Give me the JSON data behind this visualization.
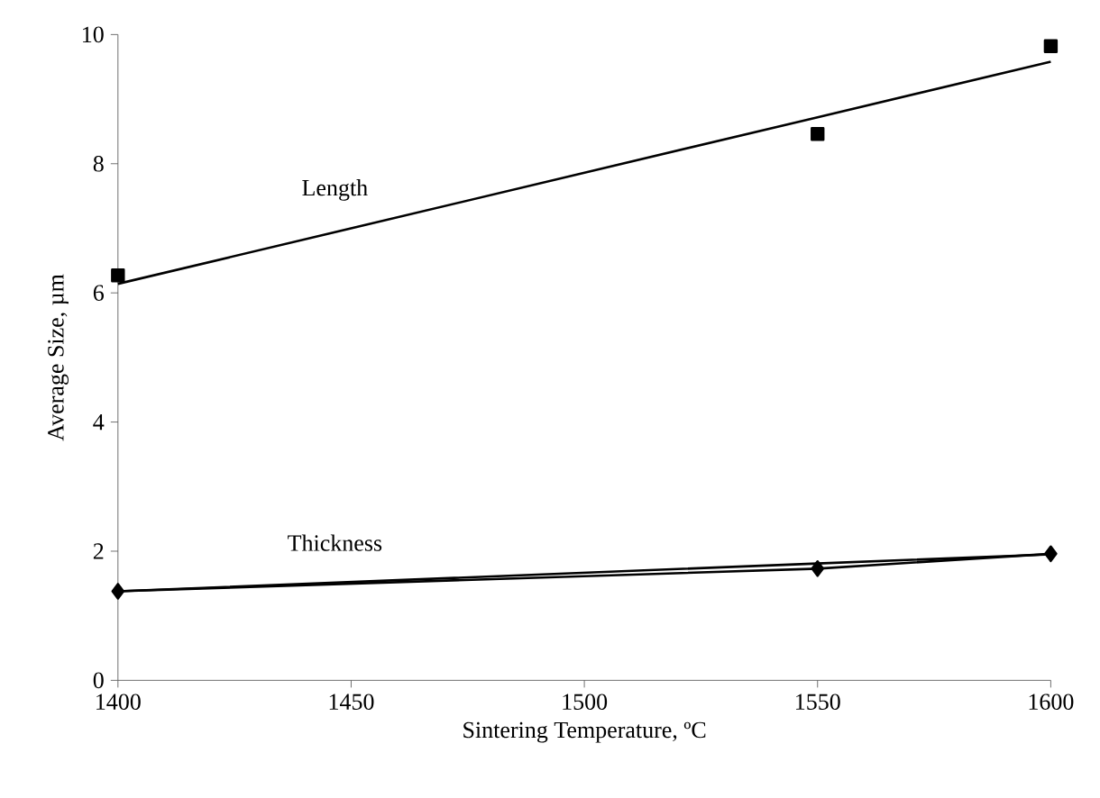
{
  "chart_data": {
    "type": "scatter",
    "xlabel": "Sintering Temperature, ºC",
    "ylabel": "Average Size, µm",
    "x": [
      1400,
      1550,
      1600
    ],
    "series": [
      {
        "marker": "square",
        "color": "#000000",
        "values": [
          6.27,
          8.46,
          9.82
        ]
      },
      {
        "name": "Length",
        "type": "line",
        "marker": "none",
        "color": "#000000",
        "values": [
          6.14,
          8.72,
          9.58
        ]
      },
      {
        "type": "line",
        "marker": "diamond",
        "color": "#000000",
        "values": [
          1.38,
          1.73,
          1.96
        ]
      },
      {
        "name": "Thickness",
        "type": "line",
        "marker": "none",
        "color": "#000000",
        "values": [
          1.38,
          1.81,
          1.95
        ]
      }
    ],
    "xlim": [
      1400,
      1600
    ],
    "xticks": [
      1400,
      1450,
      1500,
      1550,
      1600
    ],
    "ylim": [
      0,
      10
    ],
    "yticks": [
      0,
      2,
      4,
      6,
      8,
      10
    ],
    "grid": false,
    "legend": false
  }
}
